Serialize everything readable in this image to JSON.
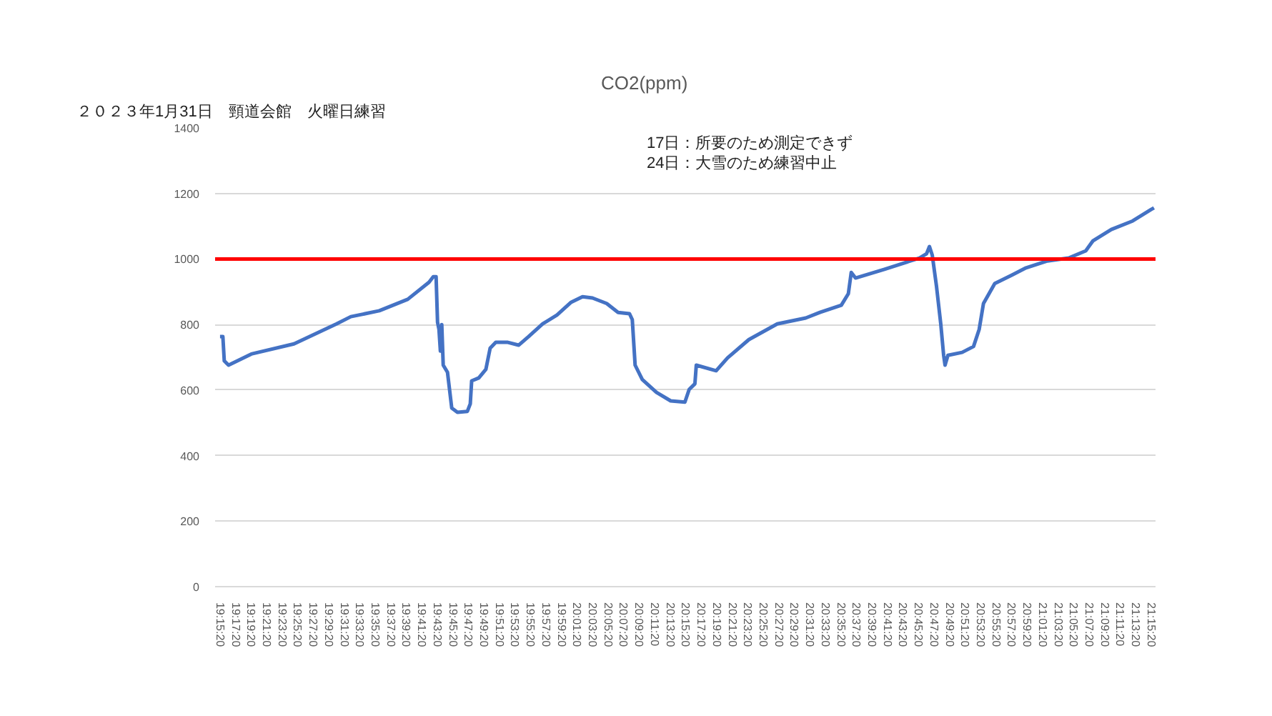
{
  "chart_data": {
    "type": "line",
    "title": "CO2(ppm)",
    "annotations": [
      "２０２３年1月31日　頸道会館　火曜日練習",
      "17日：所要のため測定できず",
      "24日：大雪のため練習中止"
    ],
    "x": [
      19.2556,
      19.2617,
      19.2647,
      19.2739,
      19.3228,
      19.4144,
      19.5059,
      19.5366,
      19.5976,
      19.6587,
      19.7045,
      19.7136,
      19.7197,
      19.7228,
      19.7259,
      19.7289,
      19.7319,
      19.735,
      19.7442,
      19.7533,
      19.7656,
      19.7869,
      19.7931,
      19.7961,
      19.8114,
      19.8266,
      19.8358,
      19.8479,
      19.8724,
      19.8969,
      19.9182,
      19.9487,
      19.9793,
      20.0098,
      20.0342,
      20.0556,
      20.0862,
      20.1106,
      20.1351,
      20.1411,
      20.1472,
      20.1626,
      20.1931,
      20.2236,
      20.2541,
      20.2633,
      20.2756,
      20.2786,
      20.3212,
      20.3457,
      20.3915,
      20.4526,
      20.5137,
      20.5442,
      20.5901,
      20.6052,
      20.6114,
      20.6206,
      20.6816,
      20.7579,
      20.7732,
      20.7794,
      20.7854,
      20.7946,
      20.8037,
      20.8099,
      20.8129,
      20.8191,
      20.8496,
      20.8741,
      20.8862,
      20.8954,
      20.9197,
      20.9564,
      20.9869,
      21.0328,
      21.0786,
      21.1152,
      21.1304,
      21.1701,
      21.2159,
      21.2556,
      21.2617
    ],
    "series": [
      {
        "color": "#4472c4",
        "values": [
          763,
          763,
          689,
          676,
          710,
          741,
          802,
          824,
          842,
          877,
          929,
          946,
          946,
          807,
          785,
          719,
          800,
          676,
          654,
          545,
          532,
          535,
          558,
          628,
          637,
          663,
          728,
          746,
          746,
          737,
          763,
          802,
          829,
          868,
          885,
          881,
          864,
          837,
          833,
          815,
          676,
          632,
          593,
          567,
          563,
          602,
          619,
          676,
          659,
          698,
          754,
          802,
          820,
          837,
          859,
          894,
          959,
          942,
          968,
          1003,
          1016,
          1038,
          1012,
          916,
          802,
          706,
          676,
          706,
          715,
          733,
          785,
          864,
          925,
          951,
          973,
          994,
          1003,
          1025,
          1055,
          1090,
          1116,
          1151,
          1156
        ]
      }
    ],
    "ylim": [
      0,
      1400
    ],
    "yticks": [
      0,
      200,
      400,
      600,
      800,
      1000,
      1200,
      1400
    ],
    "xlim": [
      19.245,
      21.265
    ],
    "xticks": [
      {
        "value": 19.2556,
        "label": "19:15:20"
      },
      {
        "value": 19.2889,
        "label": "19:17:20"
      },
      {
        "value": 19.3222,
        "label": "19:19:20"
      },
      {
        "value": 19.3556,
        "label": "19:21:20"
      },
      {
        "value": 19.3889,
        "label": "19:23:20"
      },
      {
        "value": 19.4222,
        "label": "19:25:20"
      },
      {
        "value": 19.4556,
        "label": "19:27:20"
      },
      {
        "value": 19.4889,
        "label": "19:29:20"
      },
      {
        "value": 19.5222,
        "label": "19:31:20"
      },
      {
        "value": 19.5556,
        "label": "19:33:20"
      },
      {
        "value": 19.5889,
        "label": "19:35:20"
      },
      {
        "value": 19.6222,
        "label": "19:37:20"
      },
      {
        "value": 19.6556,
        "label": "19:39:20"
      },
      {
        "value": 19.6889,
        "label": "19:41:20"
      },
      {
        "value": 19.7222,
        "label": "19:43:20"
      },
      {
        "value": 19.7556,
        "label": "19:45:20"
      },
      {
        "value": 19.7889,
        "label": "19:47:20"
      },
      {
        "value": 19.8222,
        "label": "19:49:20"
      },
      {
        "value": 19.8556,
        "label": "19:51:20"
      },
      {
        "value": 19.8889,
        "label": "19:53:20"
      },
      {
        "value": 19.9222,
        "label": "19:55:20"
      },
      {
        "value": 19.9556,
        "label": "19:57:20"
      },
      {
        "value": 19.9889,
        "label": "19:59:20"
      },
      {
        "value": 20.0222,
        "label": "20:01:20"
      },
      {
        "value": 20.0556,
        "label": "20:03:20"
      },
      {
        "value": 20.0889,
        "label": "20:05:20"
      },
      {
        "value": 20.1222,
        "label": "20:07:20"
      },
      {
        "value": 20.1556,
        "label": "20:09:20"
      },
      {
        "value": 20.1889,
        "label": "20:11:20"
      },
      {
        "value": 20.2222,
        "label": "20:13:20"
      },
      {
        "value": 20.2556,
        "label": "20:15:20"
      },
      {
        "value": 20.2889,
        "label": "20:17:20"
      },
      {
        "value": 20.3222,
        "label": "20:19:20"
      },
      {
        "value": 20.3556,
        "label": "20:21:20"
      },
      {
        "value": 20.3889,
        "label": "20:23:20"
      },
      {
        "value": 20.4222,
        "label": "20:25:20"
      },
      {
        "value": 20.4556,
        "label": "20:27:20"
      },
      {
        "value": 20.4889,
        "label": "20:29:20"
      },
      {
        "value": 20.5222,
        "label": "20:31:20"
      },
      {
        "value": 20.5556,
        "label": "20:33:20"
      },
      {
        "value": 20.5889,
        "label": "20:35:20"
      },
      {
        "value": 20.6222,
        "label": "20:37:20"
      },
      {
        "value": 20.6556,
        "label": "20:39:20"
      },
      {
        "value": 20.6889,
        "label": "20:41:20"
      },
      {
        "value": 20.7222,
        "label": "20:43:20"
      },
      {
        "value": 20.7556,
        "label": "20:45:20"
      },
      {
        "value": 20.7889,
        "label": "20:47:20"
      },
      {
        "value": 20.8222,
        "label": "20:49:20"
      },
      {
        "value": 20.8556,
        "label": "20:51:20"
      },
      {
        "value": 20.8889,
        "label": "20:53:20"
      },
      {
        "value": 20.9222,
        "label": "20:55:20"
      },
      {
        "value": 20.9556,
        "label": "20:57:20"
      },
      {
        "value": 20.9889,
        "label": "20:59:20"
      },
      {
        "value": 21.0222,
        "label": "21:01:20"
      },
      {
        "value": 21.0556,
        "label": "21:03:20"
      },
      {
        "value": 21.0889,
        "label": "21:05:20"
      },
      {
        "value": 21.1222,
        "label": "21:07:20"
      },
      {
        "value": 21.1556,
        "label": "21:09:20"
      },
      {
        "value": 21.1889,
        "label": "21:11:20"
      },
      {
        "value": 21.2222,
        "label": "21:13:20"
      },
      {
        "value": 21.2556,
        "label": "21:15:20"
      }
    ],
    "ref_lines": [
      {
        "axis": "y",
        "value": 1000,
        "color": "#ff0000"
      }
    ],
    "grid": "y"
  }
}
